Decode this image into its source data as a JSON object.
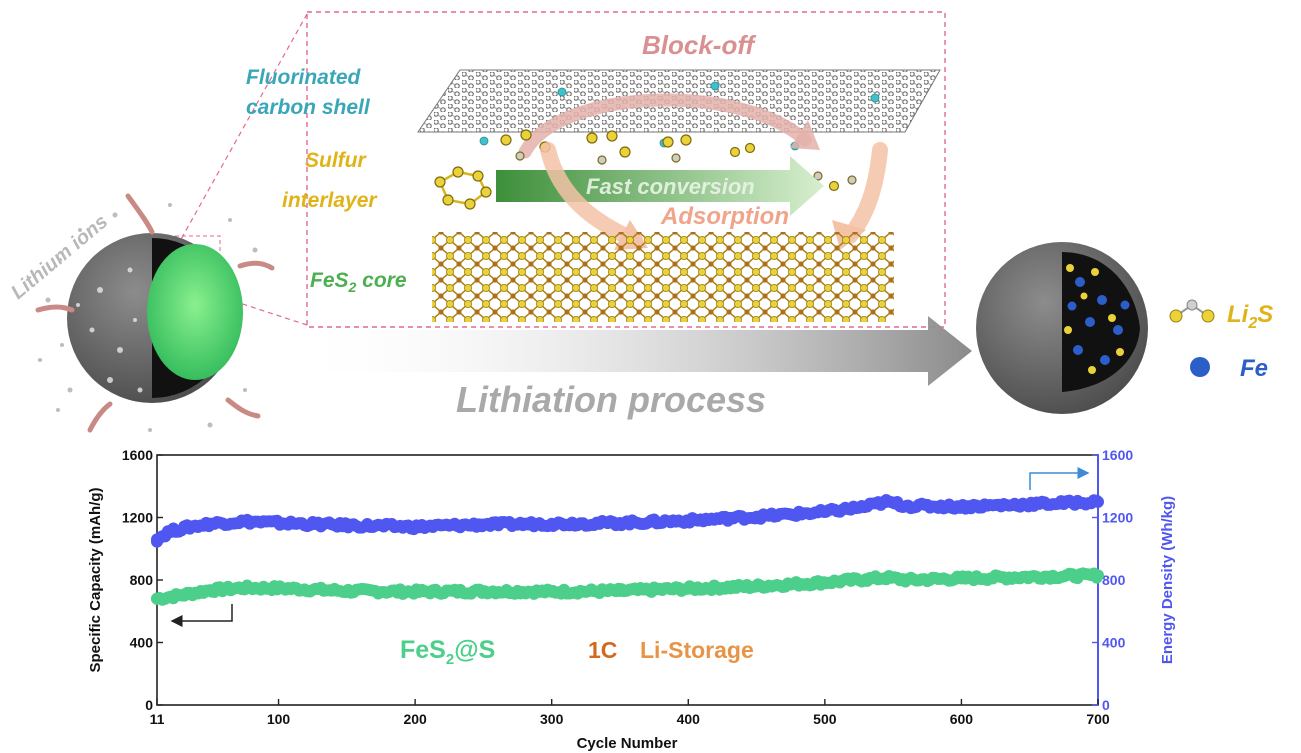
{
  "schematic": {
    "labels": {
      "block_off": "Block-off",
      "fluorinated_line1": "Fluorinated",
      "fluorinated_line2": "carbon shell",
      "sulfur_line1": "Sulfur",
      "sulfur_line2": "interlayer",
      "fast_conversion": "Fast conversion",
      "adsorption": "Adsorption",
      "fes2_core_prefix": "FeS",
      "fes2_core_sub": "2",
      "fes2_core_suffix": " core",
      "lithium_ions": "Lithium ions",
      "lithiation_process": "Lithiation process",
      "legend_li2s_prefix": "Li",
      "legend_li2s_sub": "2",
      "legend_li2s_suffix": "S",
      "legend_fe": "Fe"
    },
    "colors": {
      "block_off": "#d89090",
      "fluorinated": "#3aa7b8",
      "sulfur": "#e0b418",
      "fes2_core": "#4caf50",
      "lithium_ions": "#b8b8b8",
      "lithiation": "#a9a9a9",
      "li2s": "#e0b418",
      "fe": "#2c5ec9",
      "frame": "#e0699a"
    }
  },
  "chart_data": {
    "type": "scatter",
    "xlabel": "Cycle Number",
    "ylabel_left": "Specific Capacity (mAh/g)",
    "ylabel_right": "Energy Density (Wh/kg)",
    "xlim": [
      11,
      700
    ],
    "ylim_left": [
      0,
      1600
    ],
    "ylim_right": [
      0,
      1600
    ],
    "x_ticks": [
      11,
      100,
      200,
      300,
      400,
      500,
      600,
      700
    ],
    "y_ticks_left": [
      0,
      400,
      800,
      1200,
      1600
    ],
    "y_ticks_right": [
      0,
      400,
      800,
      1200,
      1600
    ],
    "annotations": {
      "sample_prefix": "FeS",
      "sample_sub": "2",
      "sample_suffix": "@S",
      "rate": "1C",
      "storage": "Li-Storage"
    },
    "series": [
      {
        "axis": "left",
        "color": "#4ccf8a",
        "x": [
          11,
          30,
          50,
          75,
          100,
          150,
          200,
          250,
          300,
          350,
          400,
          450,
          500,
          530,
          545,
          560,
          600,
          650,
          700
        ],
        "values": [
          680,
          705,
          735,
          750,
          748,
          730,
          725,
          728,
          725,
          730,
          745,
          760,
          785,
          805,
          815,
          800,
          810,
          820,
          830
        ]
      },
      {
        "axis": "right",
        "color": "#4f57f0",
        "x": [
          11,
          20,
          35,
          50,
          75,
          100,
          150,
          200,
          250,
          300,
          350,
          400,
          450,
          500,
          530,
          545,
          560,
          600,
          650,
          700
        ],
        "values": [
          1060,
          1110,
          1140,
          1160,
          1175,
          1165,
          1150,
          1140,
          1155,
          1160,
          1165,
          1180,
          1205,
          1235,
          1270,
          1300,
          1275,
          1270,
          1285,
          1300
        ]
      }
    ]
  }
}
